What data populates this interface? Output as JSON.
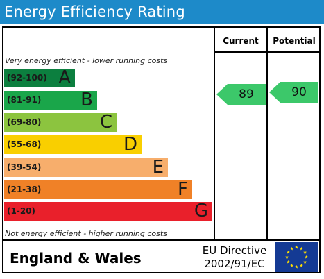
{
  "title": "Energy Efficiency Rating",
  "columns": {
    "current": "Current",
    "potential": "Potential"
  },
  "notes": {
    "top": "Very energy efficient - lower running costs",
    "bottom": "Not energy efficient - higher running costs"
  },
  "bands": [
    {
      "range": "(92-100)",
      "letter": "A",
      "color": "#0c7f3f"
    },
    {
      "range": "(81-91)",
      "letter": "B",
      "color": "#1aa64a"
    },
    {
      "range": "(69-80)",
      "letter": "C",
      "color": "#8cc43f"
    },
    {
      "range": "(55-68)",
      "letter": "D",
      "color": "#f9cf00"
    },
    {
      "range": "(39-54)",
      "letter": "E",
      "color": "#f7ae6c"
    },
    {
      "range": "(21-38)",
      "letter": "F",
      "color": "#f08127"
    },
    {
      "range": "(1-20)",
      "letter": "G",
      "color": "#e9202b"
    }
  ],
  "current_rating": {
    "value": "89",
    "color": "#3cc86a"
  },
  "potential_rating": {
    "value": "90",
    "color": "#3cc86a"
  },
  "footer": {
    "region": "England & Wales",
    "directive_line1": "EU Directive",
    "directive_line2": "2002/91/EC",
    "flag_color": "#143a94",
    "star_color": "#ffde00"
  },
  "colors": {
    "title_bar": "#1d8ac9"
  }
}
